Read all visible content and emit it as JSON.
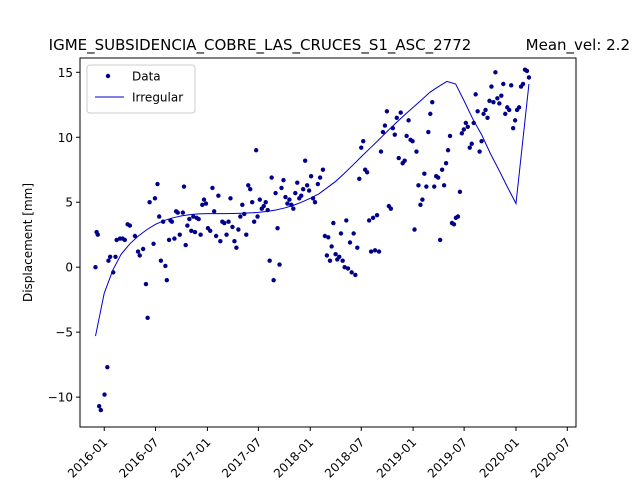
{
  "chart_data": {
    "type": "scatter",
    "title": "IGME_SUBSIDENCIA_COBRE_LAS_CRUCES_S1_ASC_2772",
    "mean_vel_label": "Mean_vel: 2.2",
    "xlabel": "",
    "ylabel": "Displacement [mm]",
    "xlim": [
      "2015-10-07",
      "2020-08-01"
    ],
    "ylim": [
      -12.3,
      16.1
    ],
    "x_ticks": [
      "2016-01",
      "2016-07",
      "2017-01",
      "2017-07",
      "2018-01",
      "2018-07",
      "2019-01",
      "2019-07",
      "2020-01",
      "2020-07"
    ],
    "y_ticks": [
      -10,
      -5,
      0,
      5,
      10,
      15
    ],
    "grid": false,
    "legend_position": "upper-left",
    "colors": {
      "data": "#00008b",
      "fit": "#0000cd"
    },
    "series": [
      {
        "name": "Data",
        "kind": "markers",
        "points": [
          [
            "2015-12-01",
            0.0
          ],
          [
            "2015-12-05",
            2.7
          ],
          [
            "2015-12-09",
            2.5
          ],
          [
            "2015-12-14",
            -10.7
          ],
          [
            "2015-12-20",
            -11.0
          ],
          [
            "2016-01-02",
            -9.8
          ],
          [
            "2016-01-12",
            -7.7
          ],
          [
            "2016-01-16",
            0.5
          ],
          [
            "2016-01-22",
            0.8
          ],
          [
            "2016-02-02",
            -0.4
          ],
          [
            "2016-02-10",
            0.8
          ],
          [
            "2016-02-14",
            2.1
          ],
          [
            "2016-02-26",
            2.2
          ],
          [
            "2016-03-06",
            2.2
          ],
          [
            "2016-03-14",
            2.1
          ],
          [
            "2016-03-24",
            3.3
          ],
          [
            "2016-04-01",
            3.2
          ],
          [
            "2016-04-19",
            2.4
          ],
          [
            "2016-04-30",
            1.2
          ],
          [
            "2016-05-06",
            0.9
          ],
          [
            "2016-05-18",
            1.4
          ],
          [
            "2016-05-28",
            -1.3
          ],
          [
            "2016-06-03",
            -3.9
          ],
          [
            "2016-06-10",
            5.0
          ],
          [
            "2016-06-24",
            1.8
          ],
          [
            "2016-06-29",
            5.3
          ],
          [
            "2016-07-08",
            6.4
          ],
          [
            "2016-07-14",
            3.9
          ],
          [
            "2016-07-20",
            0.5
          ],
          [
            "2016-07-28",
            3.5
          ],
          [
            "2016-08-05",
            0.1
          ],
          [
            "2016-08-10",
            -1.0
          ],
          [
            "2016-08-18",
            2.1
          ],
          [
            "2016-08-23",
            3.6
          ],
          [
            "2016-08-28",
            3.5
          ],
          [
            "2016-09-06",
            2.2
          ],
          [
            "2016-09-12",
            4.3
          ],
          [
            "2016-09-18",
            4.2
          ],
          [
            "2016-09-25",
            2.5
          ],
          [
            "2016-10-06",
            4.2
          ],
          [
            "2016-10-10",
            6.2
          ],
          [
            "2016-10-16",
            1.7
          ],
          [
            "2016-10-22",
            3.2
          ],
          [
            "2016-10-29",
            3.7
          ],
          [
            "2016-11-05",
            2.8
          ],
          [
            "2016-11-12",
            3.9
          ],
          [
            "2016-11-18",
            2.7
          ],
          [
            "2016-11-24",
            3.8
          ],
          [
            "2016-12-01",
            3.7
          ],
          [
            "2016-12-08",
            2.5
          ],
          [
            "2016-12-14",
            4.8
          ],
          [
            "2016-12-20",
            5.2
          ],
          [
            "2016-12-27",
            4.9
          ],
          [
            "2017-01-03",
            3.0
          ],
          [
            "2017-01-11",
            2.8
          ],
          [
            "2017-01-19",
            6.1
          ],
          [
            "2017-01-25",
            4.3
          ],
          [
            "2017-02-01",
            2.4
          ],
          [
            "2017-02-09",
            5.5
          ],
          [
            "2017-02-16",
            2.0
          ],
          [
            "2017-02-23",
            3.5
          ],
          [
            "2017-03-02",
            3.4
          ],
          [
            "2017-03-10",
            2.5
          ],
          [
            "2017-03-17",
            3.5
          ],
          [
            "2017-03-24",
            5.3
          ],
          [
            "2017-03-31",
            3.1
          ],
          [
            "2017-04-07",
            2.0
          ],
          [
            "2017-04-14",
            1.5
          ],
          [
            "2017-04-21",
            2.9
          ],
          [
            "2017-04-28",
            3.9
          ],
          [
            "2017-05-05",
            4.8
          ],
          [
            "2017-05-12",
            4.1
          ],
          [
            "2017-05-19",
            2.5
          ],
          [
            "2017-05-26",
            6.3
          ],
          [
            "2017-06-02",
            6.0
          ],
          [
            "2017-06-09",
            5.0
          ],
          [
            "2017-06-16",
            3.5
          ],
          [
            "2017-06-23",
            9.0
          ],
          [
            "2017-06-28",
            3.9
          ],
          [
            "2017-07-06",
            5.2
          ],
          [
            "2017-07-13",
            4.5
          ],
          [
            "2017-07-20",
            4.7
          ],
          [
            "2017-07-27",
            5.0
          ],
          [
            "2017-08-03",
            4.4
          ],
          [
            "2017-08-10",
            0.5
          ],
          [
            "2017-08-17",
            6.9
          ],
          [
            "2017-08-24",
            -1.0
          ],
          [
            "2017-08-31",
            5.7
          ],
          [
            "2017-09-07",
            3.0
          ],
          [
            "2017-09-14",
            0.2
          ],
          [
            "2017-09-21",
            6.1
          ],
          [
            "2017-09-28",
            6.7
          ],
          [
            "2017-10-05",
            5.4
          ],
          [
            "2017-10-12",
            4.9
          ],
          [
            "2017-10-19",
            5.2
          ],
          [
            "2017-10-26",
            4.8
          ],
          [
            "2017-11-02",
            4.5
          ],
          [
            "2017-11-09",
            5.7
          ],
          [
            "2017-11-16",
            6.5
          ],
          [
            "2017-11-23",
            5.3
          ],
          [
            "2017-11-30",
            5.5
          ],
          [
            "2017-12-07",
            6.0
          ],
          [
            "2017-12-14",
            8.2
          ],
          [
            "2017-12-21",
            6.3
          ],
          [
            "2017-12-28",
            5.9
          ],
          [
            "2018-01-04",
            7.0
          ],
          [
            "2018-01-11",
            5.3
          ],
          [
            "2018-01-18",
            5.0
          ],
          [
            "2018-01-28",
            6.4
          ],
          [
            "2018-02-05",
            6.9
          ],
          [
            "2018-02-15",
            7.5
          ],
          [
            "2018-02-22",
            2.4
          ],
          [
            "2018-03-01",
            0.9
          ],
          [
            "2018-03-06",
            2.3
          ],
          [
            "2018-03-12",
            0.5
          ],
          [
            "2018-03-18",
            1.6
          ],
          [
            "2018-03-24",
            3.4
          ],
          [
            "2018-04-01",
            1.0
          ],
          [
            "2018-04-07",
            0.6
          ],
          [
            "2018-04-14",
            0.8
          ],
          [
            "2018-04-20",
            2.6
          ],
          [
            "2018-04-26",
            0.5
          ],
          [
            "2018-05-03",
            0.0
          ],
          [
            "2018-05-09",
            3.6
          ],
          [
            "2018-05-15",
            -0.1
          ],
          [
            "2018-05-22",
            1.9
          ],
          [
            "2018-05-28",
            -0.4
          ],
          [
            "2018-06-04",
            2.6
          ],
          [
            "2018-06-10",
            -0.6
          ],
          [
            "2018-06-17",
            1.5
          ],
          [
            "2018-06-24",
            6.8
          ],
          [
            "2018-07-01",
            9.2
          ],
          [
            "2018-07-08",
            9.7
          ],
          [
            "2018-07-15",
            7.5
          ],
          [
            "2018-07-22",
            7.3
          ],
          [
            "2018-07-29",
            3.6
          ],
          [
            "2018-08-05",
            1.2
          ],
          [
            "2018-08-12",
            3.8
          ],
          [
            "2018-08-19",
            1.3
          ],
          [
            "2018-08-26",
            4.0
          ],
          [
            "2018-09-02",
            1.2
          ],
          [
            "2018-09-09",
            8.9
          ],
          [
            "2018-09-16",
            10.4
          ],
          [
            "2018-09-23",
            10.9
          ],
          [
            "2018-09-30",
            12.0
          ],
          [
            "2018-10-07",
            4.7
          ],
          [
            "2018-10-14",
            4.5
          ],
          [
            "2018-10-21",
            10.7
          ],
          [
            "2018-10-28",
            10.2
          ],
          [
            "2018-11-04",
            11.5
          ],
          [
            "2018-11-11",
            8.4
          ],
          [
            "2018-11-18",
            11.9
          ],
          [
            "2018-11-25",
            8.0
          ],
          [
            "2018-12-02",
            8.2
          ],
          [
            "2018-12-09",
            10.1
          ],
          [
            "2018-12-16",
            11.3
          ],
          [
            "2018-12-23",
            9.8
          ],
          [
            "2018-12-30",
            9.7
          ],
          [
            "2019-01-06",
            2.9
          ],
          [
            "2019-01-13",
            8.9
          ],
          [
            "2019-01-20",
            6.3
          ],
          [
            "2019-01-27",
            4.8
          ],
          [
            "2019-02-03",
            5.2
          ],
          [
            "2019-02-10",
            7.2
          ],
          [
            "2019-02-17",
            6.2
          ],
          [
            "2019-02-24",
            10.4
          ],
          [
            "2019-03-03",
            11.8
          ],
          [
            "2019-03-10",
            12.7
          ],
          [
            "2019-03-17",
            6.2
          ],
          [
            "2019-03-24",
            7.0
          ],
          [
            "2019-03-31",
            6.9
          ],
          [
            "2019-04-07",
            2.1
          ],
          [
            "2019-04-14",
            7.5
          ],
          [
            "2019-04-21",
            6.3
          ],
          [
            "2019-04-28",
            8.0
          ],
          [
            "2019-05-05",
            9.0
          ],
          [
            "2019-05-12",
            10.1
          ],
          [
            "2019-05-19",
            3.4
          ],
          [
            "2019-05-26",
            3.3
          ],
          [
            "2019-06-02",
            3.8
          ],
          [
            "2019-06-09",
            3.9
          ],
          [
            "2019-06-16",
            5.8
          ],
          [
            "2019-06-23",
            10.3
          ],
          [
            "2019-06-30",
            10.6
          ],
          [
            "2019-07-07",
            11.1
          ],
          [
            "2019-07-14",
            10.8
          ],
          [
            "2019-07-21",
            9.2
          ],
          [
            "2019-07-28",
            9.5
          ],
          [
            "2019-08-04",
            11.1
          ],
          [
            "2019-08-11",
            13.3
          ],
          [
            "2019-08-18",
            12.0
          ],
          [
            "2019-08-25",
            8.9
          ],
          [
            "2019-09-01",
            9.7
          ],
          [
            "2019-09-08",
            11.8
          ],
          [
            "2019-09-15",
            12.1
          ],
          [
            "2019-09-22",
            11.5
          ],
          [
            "2019-09-29",
            12.8
          ],
          [
            "2019-10-06",
            13.9
          ],
          [
            "2019-10-13",
            12.7
          ],
          [
            "2019-10-20",
            15.0
          ],
          [
            "2019-10-27",
            13.0
          ],
          [
            "2019-11-03",
            12.6
          ],
          [
            "2019-11-10",
            13.2
          ],
          [
            "2019-11-17",
            14.1
          ],
          [
            "2019-11-24",
            11.8
          ],
          [
            "2019-12-01",
            12.3
          ],
          [
            "2019-12-08",
            12.1
          ],
          [
            "2019-12-15",
            14.0
          ],
          [
            "2019-12-22",
            10.7
          ],
          [
            "2019-12-29",
            11.3
          ],
          [
            "2020-01-05",
            12.1
          ],
          [
            "2020-01-12",
            12.3
          ],
          [
            "2020-01-19",
            13.9
          ],
          [
            "2020-01-26",
            14.1
          ],
          [
            "2020-02-02",
            15.2
          ],
          [
            "2020-02-09",
            15.1
          ],
          [
            "2020-02-16",
            14.6
          ]
        ]
      },
      {
        "name": "Irregular",
        "kind": "line",
        "points": [
          [
            "2015-12-01",
            -5.3
          ],
          [
            "2016-01-01",
            -2.0
          ],
          [
            "2016-02-01",
            -0.2
          ],
          [
            "2016-03-01",
            1.0
          ],
          [
            "2016-04-01",
            1.8
          ],
          [
            "2016-05-01",
            2.4
          ],
          [
            "2016-06-01",
            2.9
          ],
          [
            "2016-07-01",
            3.3
          ],
          [
            "2016-08-01",
            3.6
          ],
          [
            "2016-09-01",
            3.8
          ],
          [
            "2016-10-01",
            3.95
          ],
          [
            "2016-11-01",
            4.05
          ],
          [
            "2016-12-01",
            4.1
          ],
          [
            "2017-01-01",
            4.12
          ],
          [
            "2017-02-01",
            4.12
          ],
          [
            "2017-03-01",
            4.12
          ],
          [
            "2017-04-01",
            4.13
          ],
          [
            "2017-05-01",
            4.15
          ],
          [
            "2017-06-01",
            4.18
          ],
          [
            "2017-07-01",
            4.22
          ],
          [
            "2017-08-01",
            4.3
          ],
          [
            "2017-09-01",
            4.4
          ],
          [
            "2017-10-01",
            4.55
          ],
          [
            "2017-11-01",
            4.75
          ],
          [
            "2017-12-01",
            5.0
          ],
          [
            "2018-01-01",
            5.3
          ],
          [
            "2018-02-01",
            5.65
          ],
          [
            "2018-03-01",
            6.1
          ],
          [
            "2018-04-01",
            6.6
          ],
          [
            "2018-05-01",
            7.2
          ],
          [
            "2018-06-01",
            7.85
          ],
          [
            "2018-07-01",
            8.5
          ],
          [
            "2018-08-01",
            9.15
          ],
          [
            "2018-09-01",
            9.8
          ],
          [
            "2018-10-01",
            10.45
          ],
          [
            "2018-11-01",
            11.1
          ],
          [
            "2018-12-01",
            11.7
          ],
          [
            "2019-01-01",
            12.3
          ],
          [
            "2019-02-01",
            12.9
          ],
          [
            "2019-03-01",
            13.45
          ],
          [
            "2019-04-01",
            13.9
          ],
          [
            "2019-05-01",
            14.3
          ],
          [
            "2019-06-01",
            14.1
          ],
          [
            "2019-07-01",
            12.8
          ],
          [
            "2019-08-01",
            11.4
          ],
          [
            "2019-09-01",
            10.2
          ],
          [
            "2019-10-01",
            8.8
          ],
          [
            "2019-11-01",
            7.5
          ],
          [
            "2019-12-01",
            6.2
          ],
          [
            "2020-01-01",
            4.9
          ],
          [
            "2020-02-16",
            14.1
          ]
        ]
      }
    ]
  }
}
